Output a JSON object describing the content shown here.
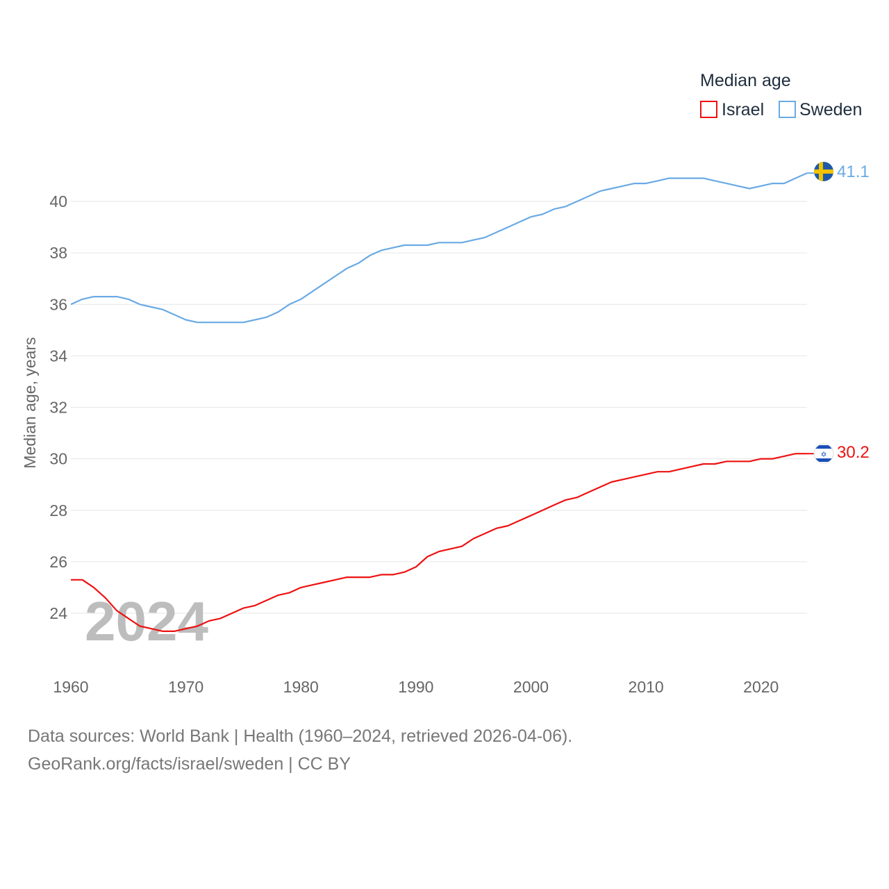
{
  "colors": {
    "israel": "#ee1111",
    "sweden": "#6aaae4",
    "grid": "#e6e6e6",
    "tick": "#666666"
  },
  "legend": {
    "title": "Median age",
    "items": [
      "Israel",
      "Sweden"
    ]
  },
  "year_label": "2024",
  "end_labels": {
    "israel": "30.2",
    "sweden": "41.1"
  },
  "footer": {
    "line1": "Data sources: World Bank | Health (1960–2024, retrieved 2026-04-06).",
    "line2": "GeoRank.org/facts/israel/sweden | CC BY"
  },
  "chart_data": {
    "type": "line",
    "title": "",
    "xlabel": "",
    "ylabel": "Median age, years",
    "xlim": [
      1960,
      2024
    ],
    "ylim": [
      22.5,
      41.5
    ],
    "xticks": [
      1960,
      1970,
      1980,
      1990,
      2000,
      2010,
      2020
    ],
    "yticks": [
      24,
      26,
      28,
      30,
      32,
      34,
      36,
      38,
      40
    ],
    "x": [
      1960,
      1961,
      1962,
      1963,
      1964,
      1965,
      1966,
      1967,
      1968,
      1969,
      1970,
      1971,
      1972,
      1973,
      1974,
      1975,
      1976,
      1977,
      1978,
      1979,
      1980,
      1981,
      1982,
      1983,
      1984,
      1985,
      1986,
      1987,
      1988,
      1989,
      1990,
      1991,
      1992,
      1993,
      1994,
      1995,
      1996,
      1997,
      1998,
      1999,
      2000,
      2001,
      2002,
      2003,
      2004,
      2005,
      2006,
      2007,
      2008,
      2009,
      2010,
      2011,
      2012,
      2013,
      2014,
      2015,
      2016,
      2017,
      2018,
      2019,
      2020,
      2021,
      2022,
      2023,
      2024
    ],
    "series": [
      {
        "name": "Israel",
        "color": "#ee1111",
        "values": [
          25.3,
          25.3,
          25.0,
          24.6,
          24.1,
          23.8,
          23.5,
          23.4,
          23.3,
          23.3,
          23.4,
          23.5,
          23.7,
          23.8,
          24.0,
          24.2,
          24.3,
          24.5,
          24.7,
          24.8,
          25.0,
          25.1,
          25.2,
          25.3,
          25.4,
          25.4,
          25.4,
          25.5,
          25.5,
          25.6,
          25.8,
          26.2,
          26.4,
          26.5,
          26.6,
          26.9,
          27.1,
          27.3,
          27.4,
          27.6,
          27.8,
          28.0,
          28.2,
          28.4,
          28.5,
          28.7,
          28.9,
          29.1,
          29.2,
          29.3,
          29.4,
          29.5,
          29.5,
          29.6,
          29.7,
          29.8,
          29.8,
          29.9,
          29.9,
          29.9,
          30.0,
          30.0,
          30.1,
          30.2,
          30.2
        ]
      },
      {
        "name": "Sweden",
        "color": "#6aaae4",
        "values": [
          36.0,
          36.2,
          36.3,
          36.3,
          36.3,
          36.2,
          36.0,
          35.9,
          35.8,
          35.6,
          35.4,
          35.3,
          35.3,
          35.3,
          35.3,
          35.3,
          35.4,
          35.5,
          35.7,
          36.0,
          36.2,
          36.5,
          36.8,
          37.1,
          37.4,
          37.6,
          37.9,
          38.1,
          38.2,
          38.3,
          38.3,
          38.3,
          38.4,
          38.4,
          38.4,
          38.5,
          38.6,
          38.8,
          39.0,
          39.2,
          39.4,
          39.5,
          39.7,
          39.8,
          40.0,
          40.2,
          40.4,
          40.5,
          40.6,
          40.7,
          40.7,
          40.8,
          40.9,
          40.9,
          40.9,
          40.9,
          40.8,
          40.7,
          40.6,
          40.5,
          40.6,
          40.7,
          40.7,
          40.9,
          41.1
        ]
      }
    ]
  }
}
